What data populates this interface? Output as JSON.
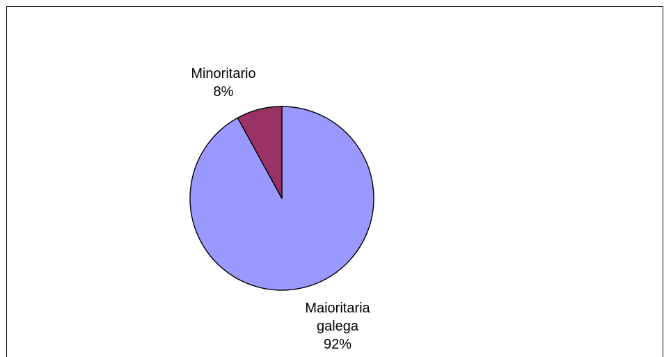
{
  "chart_data": {
    "type": "pie",
    "title": "",
    "categories": [
      "Maioritaria galega",
      "Minoritario"
    ],
    "values": [
      92,
      8
    ],
    "slices": [
      {
        "name": "Maioritaria galega",
        "value": 92,
        "label_lines": [
          "Maioritaria",
          "galega"
        ],
        "percent_label": "92%",
        "color": "#9999ff"
      },
      {
        "name": "Minoritario",
        "value": 8,
        "label_lines": [
          "Minoritario"
        ],
        "percent_label": "8%",
        "color": "#993366"
      }
    ],
    "start_angle": "top (12 o'clock)",
    "direction": "clockwise",
    "legend": "none",
    "border_color": "#000000",
    "background": "#ffffff"
  }
}
